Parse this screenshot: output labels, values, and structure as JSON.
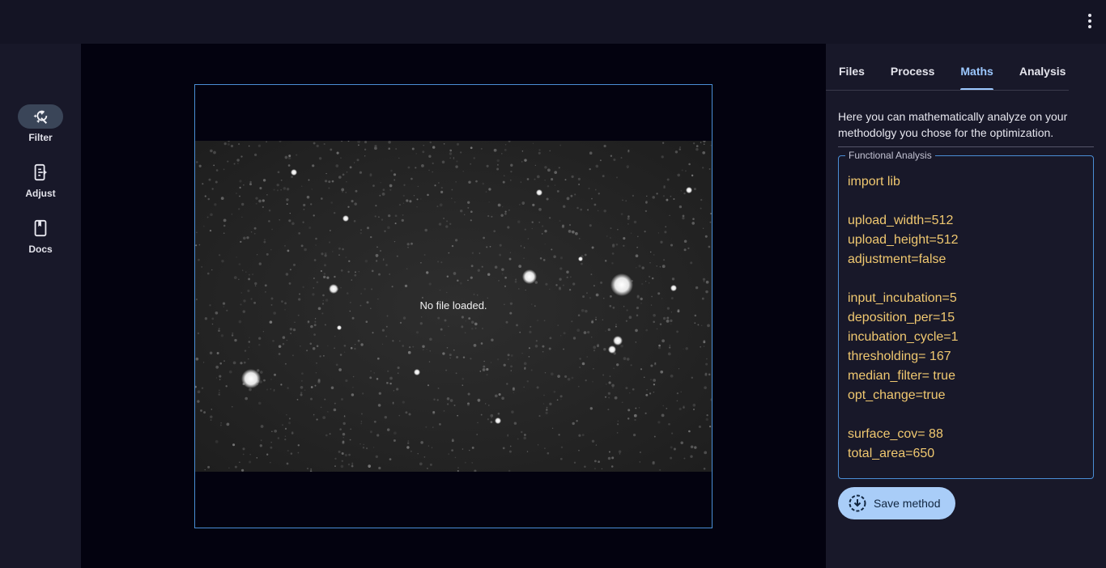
{
  "toolbar": {
    "more_icon": "more-vertical-icon"
  },
  "rail": {
    "items": [
      {
        "label": "Filter",
        "icon": "filter-auto-fix-icon",
        "active": true
      },
      {
        "label": "Adjust",
        "icon": "phone-adjust-icon",
        "active": false
      },
      {
        "label": "Docs",
        "icon": "book-icon",
        "active": false
      }
    ]
  },
  "viewer": {
    "status": "No file loaded."
  },
  "panel": {
    "tabs": [
      {
        "label": "Files",
        "active": false
      },
      {
        "label": "Process",
        "active": false
      },
      {
        "label": "Maths",
        "active": true
      },
      {
        "label": "Analysis",
        "active": false
      }
    ],
    "description": "Here you can mathematically analyze on your methodolgy you chose for the optimization.",
    "fieldset_legend": "Functional Analysis",
    "code": "import lib\n\nupload_width=512\nupload_height=512\nadjustment=false\n\ninput_incubation=5\ndeposition_per=15\nincubation_cycle=1\nthresholding= 167\nmedian_filter= true\nopt_change=true\n\nsurface_cov= 88\ntotal_area=650",
    "save_label": "Save method"
  },
  "colors": {
    "accent": "#9cc8ff",
    "code_text": "#f0c870",
    "frame_border": "#4a8ed6",
    "save_button": "#a9cdf8"
  }
}
